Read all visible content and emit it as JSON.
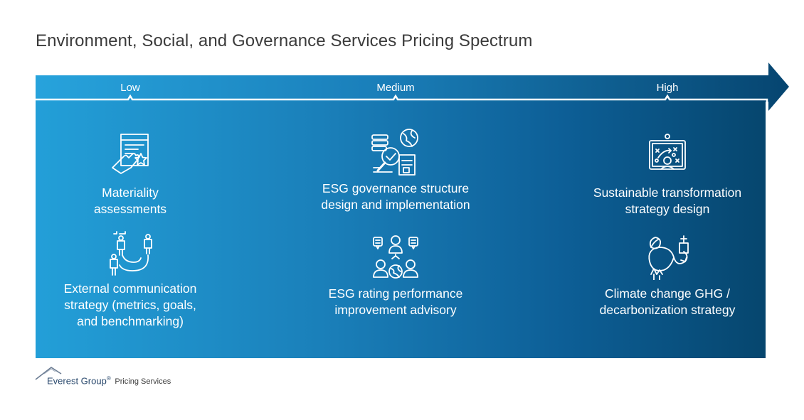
{
  "title": "Environment, Social, and Governance Services Pricing Spectrum",
  "colors": {
    "arrow_start": "#27a3dc",
    "arrow_end": "#064570",
    "title": "#3b3b3b"
  },
  "levels": [
    "Low",
    "Medium",
    "High"
  ],
  "services": [
    {
      "label": "Materiality assessments",
      "icon": "touch-screen-star-icon",
      "lines": [
        "Materiality",
        "assessments"
      ]
    },
    {
      "label": "ESG governance structure design and implementation",
      "icon": "magnifier-check-globe-icon",
      "lines": [
        "ESG governance structure",
        "design and implementation"
      ]
    },
    {
      "label": "Sustainable transformation strategy design",
      "icon": "strategy-board-presenter-icon",
      "lines": [
        "Sustainable transformation",
        "strategy design"
      ]
    },
    {
      "label": "External communication strategy (metrics, goals, and benchmarking)",
      "icon": "people-communication-icon",
      "lines": [
        "External communication",
        "strategy (metrics, goals,",
        "and benchmarking)"
      ]
    },
    {
      "label": "ESG rating performance improvement advisory",
      "icon": "people-rating-globe-icon",
      "lines": [
        "ESG rating performance",
        "improvement advisory"
      ]
    },
    {
      "label": "Climate change GHG / decarbonization strategy",
      "icon": "decarbonization-cycle-icon",
      "lines": [
        "Climate change GHG /",
        "decarbonization strategy"
      ]
    }
  ],
  "footer": {
    "brand": "Everest Group",
    "registered": "®",
    "service": "Pricing Services"
  }
}
